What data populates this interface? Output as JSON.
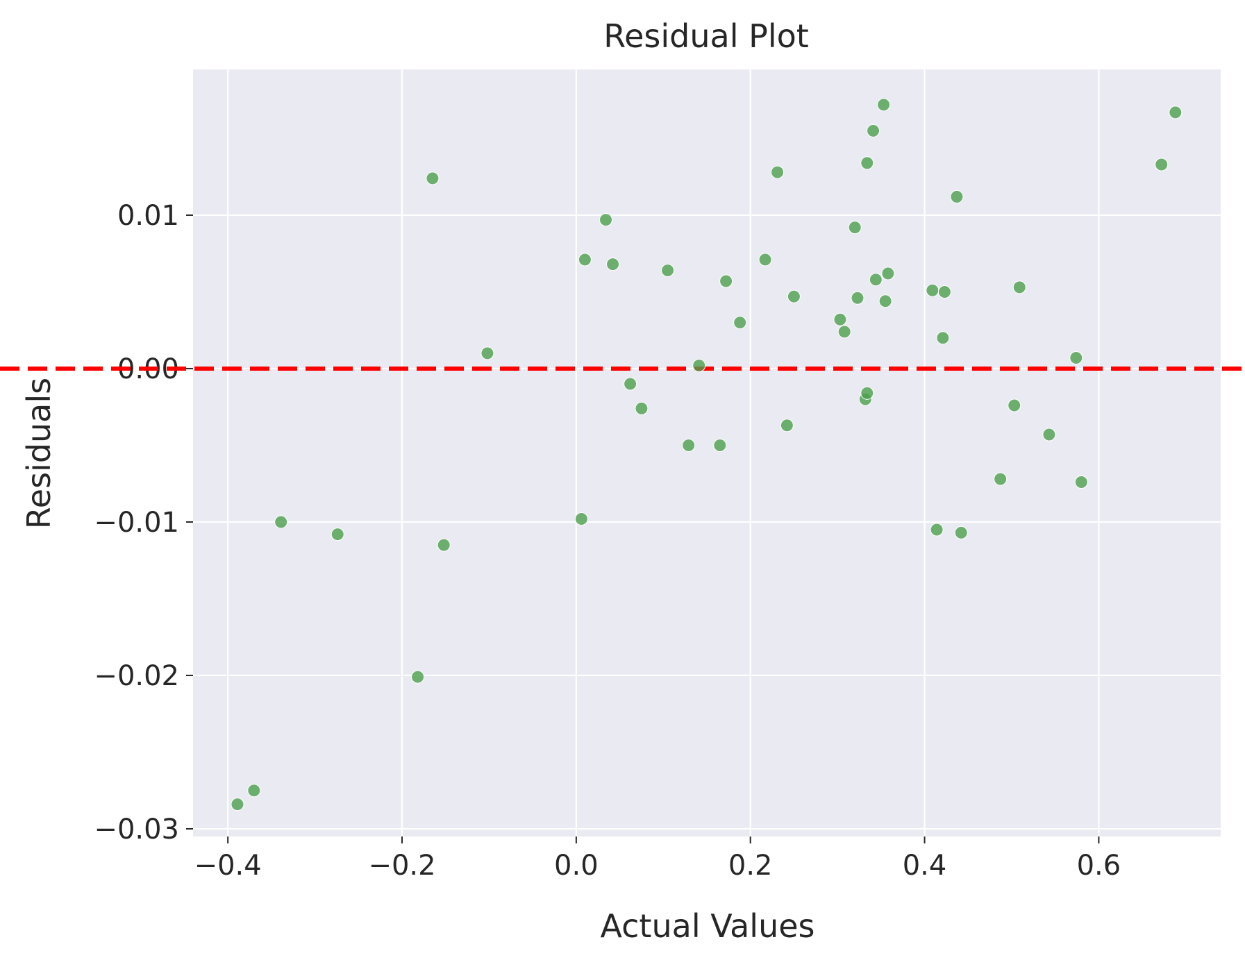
{
  "chart_data": {
    "type": "scatter",
    "title": "Residual Plot",
    "xlabel": "Actual Values",
    "ylabel": "Residuals",
    "xlim": [
      -0.44,
      0.74
    ],
    "ylim": [
      -0.0305,
      0.0195
    ],
    "xticks": [
      -0.4,
      -0.2,
      0.0,
      0.2,
      0.4,
      0.6
    ],
    "xtick_labels": [
      "−0.4",
      "−0.2",
      "0.0",
      "0.2",
      "0.4",
      "0.6"
    ],
    "yticks": [
      -0.03,
      -0.02,
      -0.01,
      0.0,
      0.01
    ],
    "ytick_labels": [
      "−0.03",
      "−0.02",
      "−0.01",
      "0.00",
      "0.01"
    ],
    "grid": true,
    "reference_line": {
      "y": 0,
      "color": "#ff0000",
      "style": "dashed"
    },
    "colors": {
      "background": "#eaeaf2",
      "grid": "#ffffff",
      "points": "#4c9f4c",
      "text": "#262626"
    },
    "points": [
      {
        "x": -0.389,
        "y": -0.0284
      },
      {
        "x": -0.37,
        "y": -0.0275
      },
      {
        "x": -0.339,
        "y": -0.01
      },
      {
        "x": -0.274,
        "y": -0.0108
      },
      {
        "x": -0.182,
        "y": -0.0201
      },
      {
        "x": -0.165,
        "y": 0.0124
      },
      {
        "x": -0.152,
        "y": -0.0115
      },
      {
        "x": -0.102,
        "y": 0.001
      },
      {
        "x": 0.006,
        "y": -0.0098
      },
      {
        "x": 0.01,
        "y": 0.0071
      },
      {
        "x": 0.034,
        "y": 0.0097
      },
      {
        "x": 0.042,
        "y": 0.0068
      },
      {
        "x": 0.062,
        "y": -0.001
      },
      {
        "x": 0.075,
        "y": -0.0026
      },
      {
        "x": 0.105,
        "y": 0.0064
      },
      {
        "x": 0.129,
        "y": -0.005
      },
      {
        "x": 0.141,
        "y": 0.0002
      },
      {
        "x": 0.165,
        "y": -0.005
      },
      {
        "x": 0.172,
        "y": 0.0057
      },
      {
        "x": 0.188,
        "y": 0.003
      },
      {
        "x": 0.217,
        "y": 0.0071
      },
      {
        "x": 0.231,
        "y": 0.0128
      },
      {
        "x": 0.242,
        "y": -0.0037
      },
      {
        "x": 0.25,
        "y": 0.0047
      },
      {
        "x": 0.303,
        "y": 0.0032
      },
      {
        "x": 0.308,
        "y": 0.0024
      },
      {
        "x": 0.32,
        "y": 0.0092
      },
      {
        "x": 0.323,
        "y": 0.0046
      },
      {
        "x": 0.332,
        "y": -0.002
      },
      {
        "x": 0.334,
        "y": -0.0016
      },
      {
        "x": 0.334,
        "y": 0.0134
      },
      {
        "x": 0.341,
        "y": 0.0155
      },
      {
        "x": 0.344,
        "y": 0.0058
      },
      {
        "x": 0.353,
        "y": 0.0172
      },
      {
        "x": 0.355,
        "y": 0.0044
      },
      {
        "x": 0.358,
        "y": 0.0062
      },
      {
        "x": 0.409,
        "y": 0.0051
      },
      {
        "x": 0.414,
        "y": -0.0105
      },
      {
        "x": 0.421,
        "y": 0.002
      },
      {
        "x": 0.423,
        "y": 0.005
      },
      {
        "x": 0.437,
        "y": 0.0112
      },
      {
        "x": 0.442,
        "y": -0.0107
      },
      {
        "x": 0.487,
        "y": -0.0072
      },
      {
        "x": 0.503,
        "y": -0.0024
      },
      {
        "x": 0.509,
        "y": 0.0053
      },
      {
        "x": 0.543,
        "y": -0.0043
      },
      {
        "x": 0.574,
        "y": 0.0007
      },
      {
        "x": 0.58,
        "y": -0.0074
      },
      {
        "x": 0.672,
        "y": 0.0133
      },
      {
        "x": 0.688,
        "y": 0.0167
      }
    ]
  }
}
